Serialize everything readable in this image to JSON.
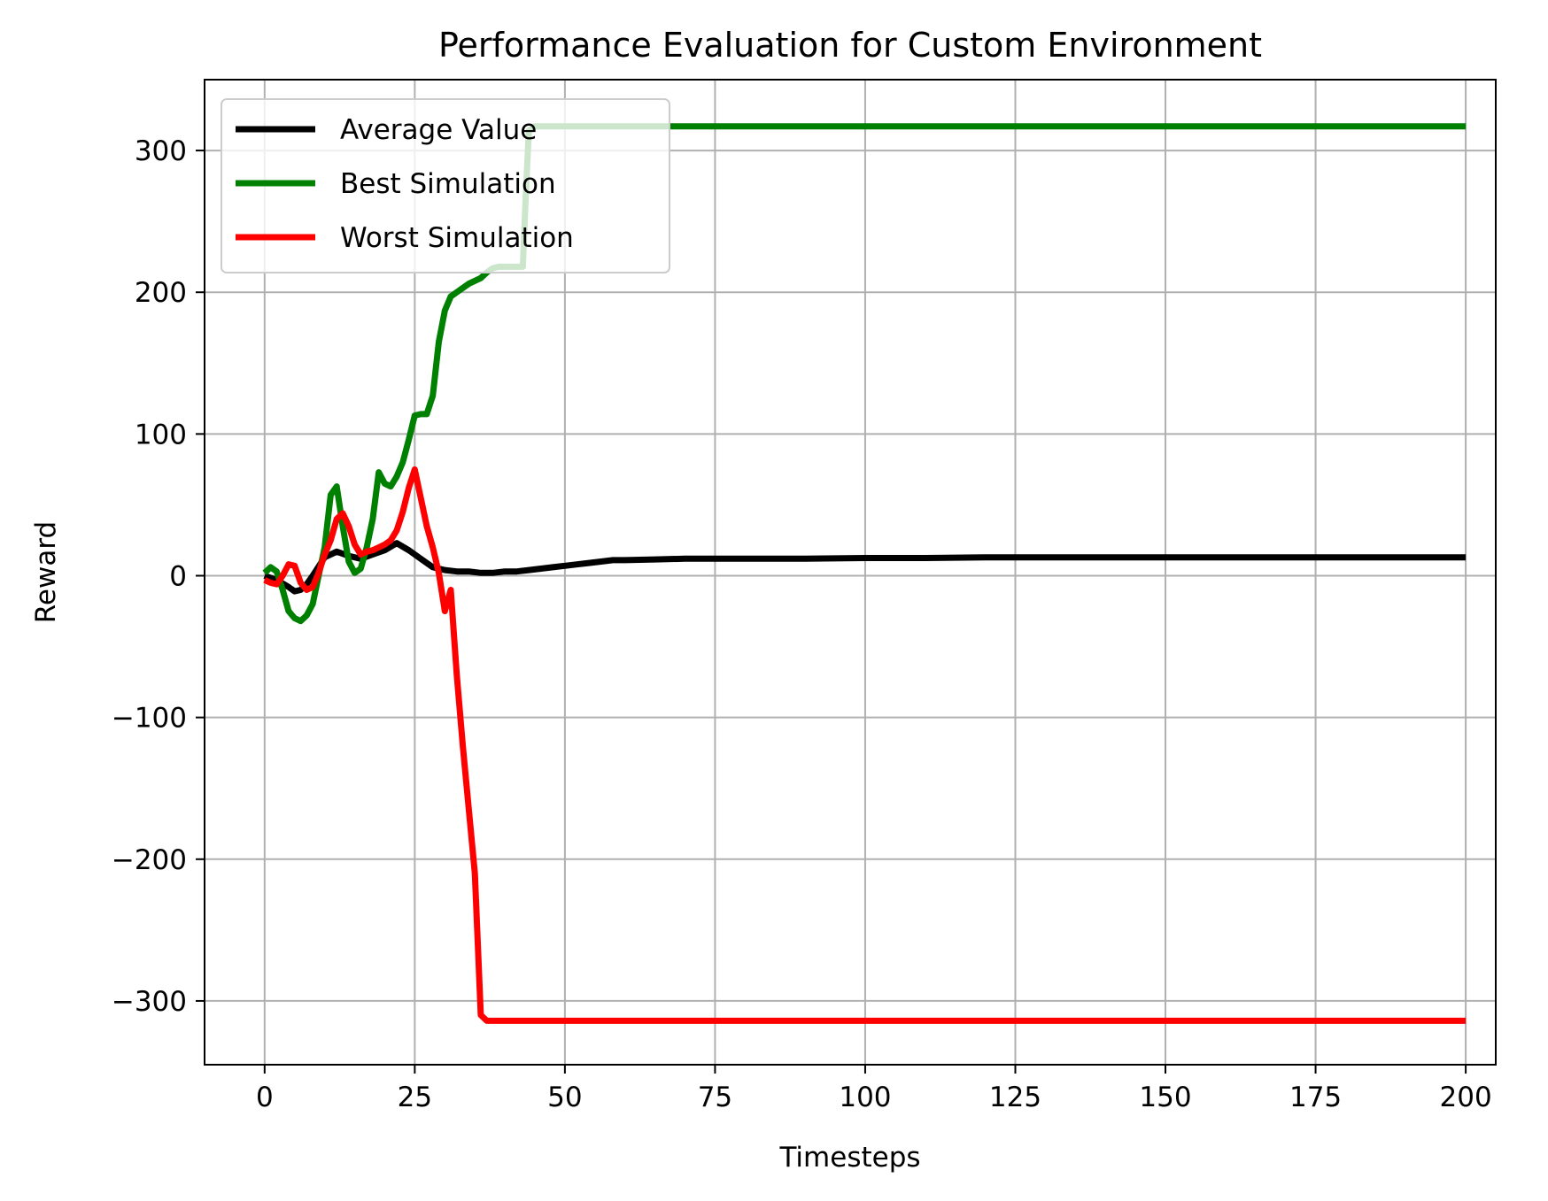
{
  "chart_data": {
    "type": "line",
    "title": "Performance Evaluation for Custom Environment",
    "xlabel": "Timesteps",
    "ylabel": "Reward",
    "xlim": [
      -10,
      205
    ],
    "ylim": [
      -345,
      350
    ],
    "xticks": [
      0,
      25,
      50,
      75,
      100,
      125,
      150,
      175,
      200
    ],
    "yticks": [
      -300,
      -200,
      -100,
      0,
      100,
      200,
      300
    ],
    "xtick_labels": [
      "0",
      "25",
      "50",
      "75",
      "100",
      "125",
      "150",
      "175",
      "200"
    ],
    "ytick_labels": [
      "−300",
      "−200",
      "−100",
      "0",
      "100",
      "200",
      "300"
    ],
    "grid": true,
    "legend_position": "upper-left",
    "series": [
      {
        "name": "Average Value",
        "color": "#000000",
        "x": [
          0,
          2,
          4,
          5,
          6,
          7,
          8,
          10,
          12,
          14,
          16,
          18,
          20,
          22,
          24,
          26,
          28,
          30,
          32,
          34,
          36,
          38,
          40,
          42,
          44,
          46,
          48,
          50,
          52,
          54,
          56,
          58,
          60,
          65,
          70,
          75,
          80,
          90,
          100,
          110,
          120,
          125,
          150,
          175,
          200
        ],
        "y": [
          0,
          -3,
          -8,
          -11,
          -10,
          -6,
          0,
          13,
          17,
          14,
          12,
          15,
          18,
          23,
          18,
          12,
          6,
          4,
          3,
          3,
          2,
          2,
          3,
          3,
          4,
          5,
          6,
          7,
          8,
          9,
          10,
          11,
          11,
          11.5,
          12,
          12,
          12,
          12,
          12.5,
          12.5,
          13,
          13,
          13,
          13,
          13
        ]
      },
      {
        "name": "Best Simulation",
        "color": "#008000",
        "x": [
          0,
          1,
          2,
          3,
          4,
          5,
          6,
          7,
          8,
          9,
          10,
          11,
          12,
          13,
          14,
          15,
          16,
          17,
          18,
          19,
          20,
          21,
          22,
          23,
          24,
          25,
          26,
          27,
          28,
          29,
          30,
          31,
          32,
          33,
          34,
          36,
          37,
          38,
          39,
          40,
          41,
          42,
          43,
          43.5,
          44,
          45,
          50,
          100,
          150,
          200
        ],
        "y": [
          2,
          6,
          3,
          -10,
          -25,
          -30,
          -32,
          -28,
          -20,
          0,
          20,
          57,
          63,
          35,
          10,
          2,
          5,
          20,
          40,
          73,
          65,
          63,
          70,
          80,
          96,
          113,
          114,
          114,
          127,
          165,
          187,
          197,
          200,
          203,
          206,
          210,
          214,
          217,
          218,
          218,
          218,
          218,
          218,
          270,
          314,
          317,
          317,
          317,
          317,
          317
        ]
      },
      {
        "name": "Worst Simulation",
        "color": "#ff0000",
        "x": [
          0,
          1,
          2,
          3,
          4,
          5,
          6,
          7,
          8,
          9,
          10,
          11,
          12,
          13,
          14,
          15,
          16,
          17,
          18,
          19,
          20,
          21,
          22,
          23,
          24,
          25,
          26,
          27,
          28,
          29,
          30,
          31,
          32,
          33,
          34,
          35,
          36,
          37,
          50,
          100,
          150,
          200
        ],
        "y": [
          -3,
          -5,
          -6,
          0,
          8,
          7,
          -5,
          -10,
          -8,
          2,
          15,
          25,
          40,
          44,
          35,
          22,
          15,
          17,
          18,
          20,
          22,
          25,
          32,
          45,
          62,
          75,
          55,
          35,
          20,
          2,
          -25,
          -10,
          -70,
          -120,
          -165,
          -210,
          -310,
          -314,
          -314,
          -314,
          -314,
          -314
        ]
      }
    ]
  }
}
